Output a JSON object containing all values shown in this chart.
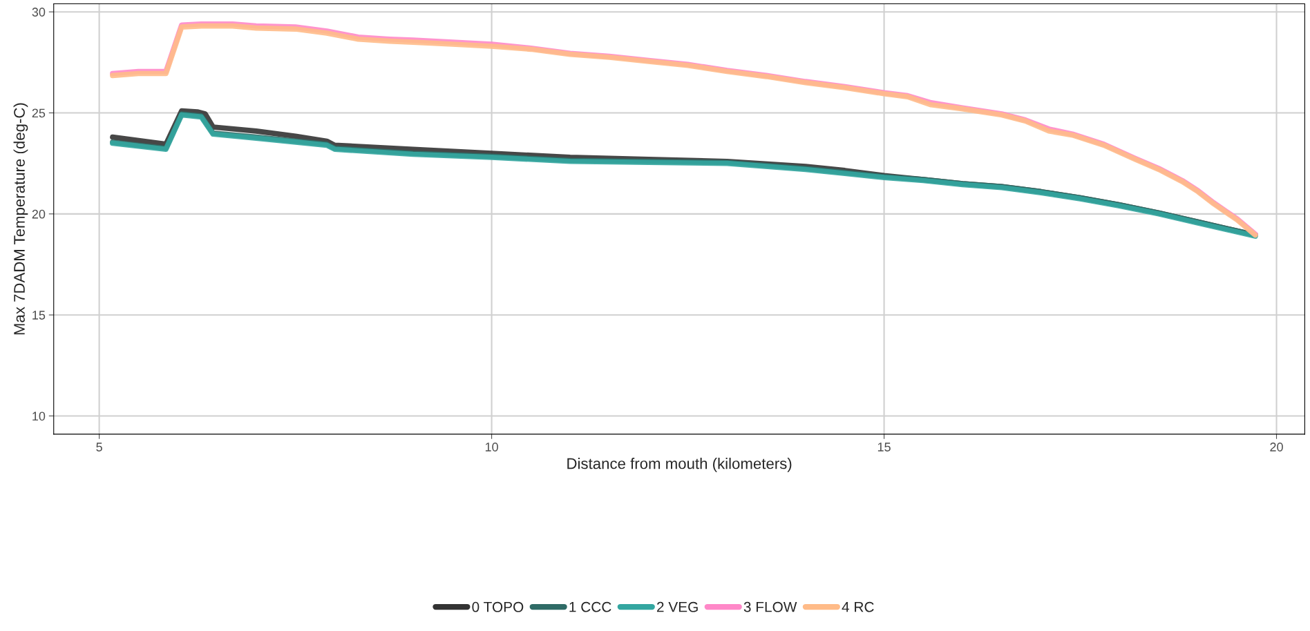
{
  "chart_data": {
    "type": "line",
    "xlabel": "Distance from mouth (kilometers)",
    "ylabel": "Max 7DADM Temperature (deg-C)",
    "xlim": [
      4.42,
      20.36
    ],
    "ylim": [
      9.1,
      30.4
    ],
    "xticks": [
      5,
      10,
      15,
      20
    ],
    "yticks": [
      10,
      15,
      20,
      25,
      30
    ],
    "grid": true,
    "legend": "bottom",
    "line_style": "solid",
    "series": [
      {
        "name": "0 TOPO",
        "color": "#333333",
        "x": [
          5.17,
          5.85,
          6.05,
          6.25,
          6.35,
          6.45,
          7.0,
          7.5,
          7.9,
          8.0,
          9.0,
          10.0,
          11.0,
          12.0,
          13.0,
          14.0,
          14.5,
          15.0,
          15.5,
          16.0,
          16.5,
          17.0,
          17.5,
          18.0,
          18.5,
          19.0,
          19.73
        ],
        "values": [
          23.8,
          23.45,
          25.1,
          25.05,
          24.95,
          24.3,
          24.1,
          23.85,
          23.6,
          23.4,
          23.2,
          23.0,
          22.8,
          22.7,
          22.6,
          22.35,
          22.15,
          21.9,
          21.7,
          21.5,
          21.35,
          21.1,
          20.8,
          20.45,
          20.05,
          19.6,
          18.95
        ]
      },
      {
        "name": "1 CCC",
        "color": "#2f6b66",
        "x": [
          5.17,
          5.85,
          6.05,
          6.3,
          6.45,
          7.0,
          7.9,
          8.0,
          9.0,
          10.0,
          11.0,
          12.0,
          13.0,
          14.0,
          14.5,
          15.0,
          15.5,
          16.0,
          16.5,
          17.0,
          17.5,
          18.0,
          18.5,
          19.0,
          19.73
        ],
        "values": [
          23.55,
          23.25,
          24.95,
          24.85,
          24.0,
          23.8,
          23.45,
          23.25,
          23.0,
          22.85,
          22.65,
          22.6,
          22.55,
          22.25,
          22.05,
          21.85,
          21.7,
          21.5,
          21.35,
          21.1,
          20.8,
          20.45,
          20.05,
          19.6,
          18.95
        ]
      },
      {
        "name": "2 VEG",
        "color": "#33a6a0",
        "x": [
          5.17,
          5.85,
          6.05,
          6.3,
          6.45,
          7.0,
          7.9,
          8.0,
          9.0,
          10.0,
          11.0,
          12.0,
          13.0,
          14.0,
          14.5,
          15.0,
          15.5,
          16.0,
          16.5,
          17.0,
          17.5,
          18.0,
          18.5,
          19.0,
          19.73
        ],
        "values": [
          23.5,
          23.2,
          24.9,
          24.8,
          23.95,
          23.75,
          23.4,
          23.2,
          22.95,
          22.8,
          22.6,
          22.55,
          22.5,
          22.2,
          22.0,
          21.8,
          21.65,
          21.45,
          21.3,
          21.05,
          20.75,
          20.4,
          20.0,
          19.55,
          18.9
        ]
      },
      {
        "name": "3 FLOW",
        "color": "#ff88c8",
        "x": [
          5.17,
          5.5,
          5.85,
          6.05,
          6.3,
          6.7,
          7.0,
          7.5,
          7.9,
          8.3,
          8.7,
          9.0,
          9.5,
          10.0,
          10.5,
          11.0,
          11.5,
          12.0,
          12.5,
          13.0,
          13.5,
          14.0,
          14.5,
          15.0,
          15.3,
          15.6,
          16.0,
          16.5,
          16.8,
          17.1,
          17.4,
          17.8,
          18.2,
          18.5,
          18.8,
          19.0,
          19.2,
          19.5,
          19.73
        ],
        "values": [
          26.95,
          27.05,
          27.05,
          29.35,
          29.4,
          29.4,
          29.3,
          29.25,
          29.05,
          28.75,
          28.65,
          28.6,
          28.5,
          28.4,
          28.2,
          27.95,
          27.8,
          27.6,
          27.4,
          27.1,
          26.85,
          26.55,
          26.3,
          26.0,
          25.85,
          25.5,
          25.25,
          24.95,
          24.65,
          24.2,
          23.95,
          23.45,
          22.75,
          22.25,
          21.65,
          21.15,
          20.55,
          19.75,
          19.0
        ]
      },
      {
        "name": "4 RC",
        "color": "#ffbb88",
        "x": [
          5.17,
          5.5,
          5.85,
          6.05,
          6.3,
          6.7,
          7.0,
          7.5,
          7.9,
          8.3,
          8.7,
          9.0,
          9.5,
          10.0,
          10.5,
          11.0,
          11.5,
          12.0,
          12.5,
          13.0,
          13.5,
          14.0,
          14.5,
          15.0,
          15.3,
          15.6,
          16.0,
          16.5,
          16.8,
          17.1,
          17.4,
          17.8,
          18.2,
          18.5,
          18.8,
          19.0,
          19.2,
          19.5,
          19.73
        ],
        "values": [
          26.85,
          26.95,
          26.95,
          29.25,
          29.3,
          29.3,
          29.2,
          29.15,
          28.95,
          28.65,
          28.55,
          28.5,
          28.4,
          28.3,
          28.15,
          27.9,
          27.75,
          27.55,
          27.35,
          27.05,
          26.8,
          26.5,
          26.25,
          25.95,
          25.8,
          25.4,
          25.2,
          24.9,
          24.6,
          24.1,
          23.9,
          23.4,
          22.7,
          22.2,
          21.6,
          21.1,
          20.5,
          19.7,
          18.95
        ]
      }
    ]
  }
}
